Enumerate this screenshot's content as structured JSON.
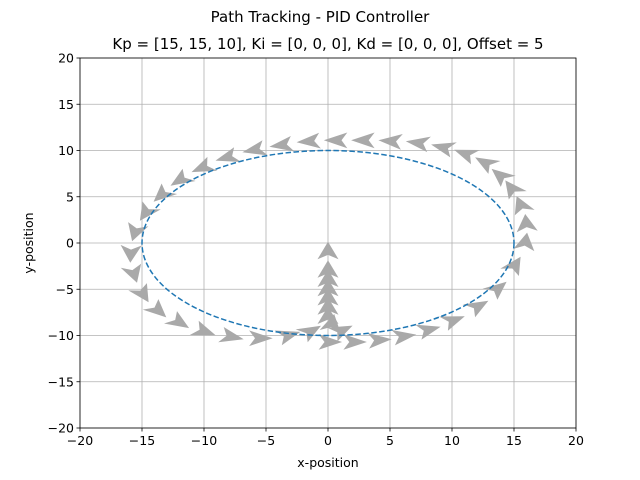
{
  "figure": {
    "suptitle": "Path Tracking - PID Controller"
  },
  "chart_data": {
    "type": "line",
    "title": "Kp = [15, 15, 10], Ki = [0, 0, 0], Kd = [0, 0, 0], Offset = 5",
    "xlabel": "x-position",
    "ylabel": "y-position",
    "xlim": [
      -20,
      20
    ],
    "ylim": [
      -20,
      20
    ],
    "xticks": [
      -20,
      -15,
      -10,
      -5,
      0,
      5,
      10,
      15,
      20
    ],
    "yticks": [
      -20,
      -15,
      -10,
      -5,
      0,
      5,
      10,
      15,
      20
    ],
    "grid": true,
    "reference_path": {
      "shape": "ellipse",
      "center": [
        0,
        0
      ],
      "semi_axes": [
        15,
        10
      ],
      "style": "dashed",
      "color": "#1f77b4"
    },
    "robot_arrows": {
      "color": "#a9a9a9",
      "poses": [
        [
          0,
          -1,
          90
        ],
        [
          0,
          -3,
          90
        ],
        [
          0,
          -4,
          90
        ],
        [
          0,
          -5,
          90
        ],
        [
          0,
          -6,
          90
        ],
        [
          0,
          -7,
          90
        ],
        [
          0,
          -8,
          90
        ],
        [
          0.3,
          -8.8,
          80
        ],
        [
          1,
          -9.5,
          30
        ],
        [
          0,
          -10.7,
          0
        ],
        [
          2,
          -10.7,
          0
        ],
        [
          4,
          -10.5,
          5
        ],
        [
          6,
          -10.1,
          10
        ],
        [
          8,
          -9.4,
          18
        ],
        [
          10,
          -8.4,
          25
        ],
        [
          12,
          -6.9,
          35
        ],
        [
          13.6,
          -5,
          45
        ],
        [
          15,
          -2.5,
          62
        ],
        [
          15.9,
          0,
          82
        ],
        [
          16,
          2,
          95
        ],
        [
          15.6,
          4,
          110
        ],
        [
          14.9,
          5.8,
          122
        ],
        [
          14,
          7.2,
          135
        ],
        [
          12.8,
          8.6,
          145
        ],
        [
          11.2,
          9.6,
          155
        ],
        [
          9.4,
          10.3,
          162
        ],
        [
          7.4,
          10.8,
          170
        ],
        [
          5.2,
          11,
          175
        ],
        [
          3,
          11.1,
          180
        ],
        [
          0.8,
          11.1,
          180
        ],
        [
          -1.4,
          11,
          185
        ],
        [
          -3.6,
          10.6,
          190
        ],
        [
          -5.8,
          10.1,
          195
        ],
        [
          -8,
          9.3,
          200
        ],
        [
          -10,
          8.2,
          208
        ],
        [
          -11.8,
          6.9,
          218
        ],
        [
          -13.3,
          5.3,
          228
        ],
        [
          -14.6,
          3.4,
          240
        ],
        [
          -15.5,
          1.3,
          255
        ],
        [
          -15.9,
          -1,
          268
        ],
        [
          -15.7,
          -3.2,
          285
        ],
        [
          -15,
          -5.4,
          298
        ],
        [
          -13.8,
          -7.2,
          312
        ],
        [
          -12.1,
          -8.5,
          322
        ],
        [
          -10.1,
          -9.5,
          335
        ],
        [
          -7.9,
          -10.1,
          345
        ],
        [
          -5.6,
          -10.3,
          0
        ],
        [
          -3.3,
          -10,
          20
        ],
        [
          -1.5,
          -9.6,
          35
        ]
      ]
    }
  }
}
